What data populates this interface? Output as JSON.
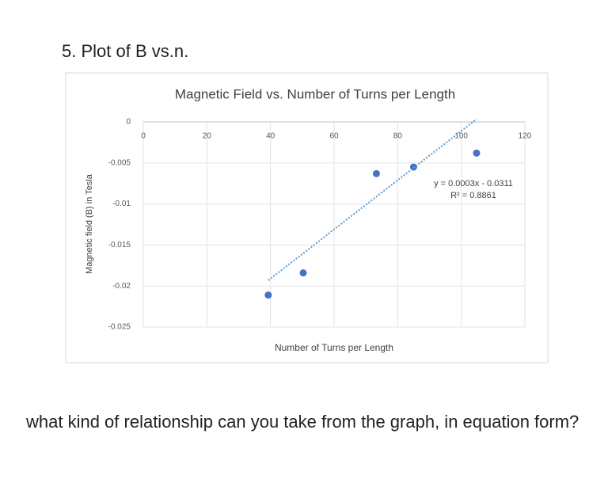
{
  "heading": "5. Plot of B vs.n.",
  "question": "what kind of relationship can you take from the graph, in equation form?",
  "chart_data": {
    "type": "scatter",
    "title": "Magnetic Field vs. Number of Turns per Length",
    "x_label": "Number of Turns per Length",
    "y_label": "Magnetic field (B) in Tesla",
    "x": [
      39.3,
      50.3,
      73.3,
      85,
      104.8
    ],
    "values": [
      -0.0211,
      -0.0184,
      -0.0063,
      -0.0055,
      -0.0038
    ],
    "color": "#4472c4",
    "xlim": [
      0,
      120
    ],
    "xticks": [
      0,
      20,
      40,
      60,
      80,
      100,
      120
    ],
    "ylim": [
      -0.025,
      0
    ],
    "yticks": [
      0,
      -0.005,
      -0.01,
      -0.015,
      -0.02,
      -0.025
    ],
    "grid": true,
    "trendline": {
      "slope": 0.0003,
      "intercept": -0.0311,
      "color": "#5b9bd5",
      "label": "y = 0.0003x - 0.0311",
      "r2_label": "R² = 0.8861"
    }
  }
}
